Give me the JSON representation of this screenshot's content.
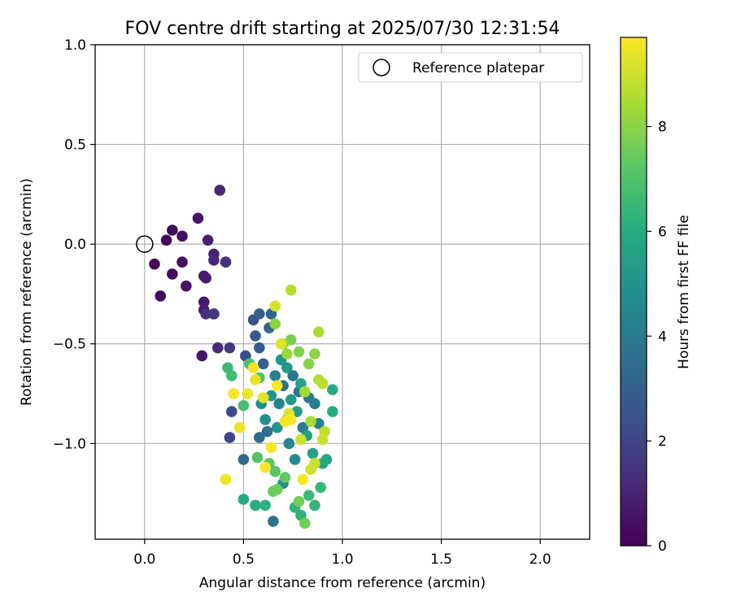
{
  "chart_data": {
    "type": "scatter",
    "title": "FOV centre drift starting at 2025/07/30 12:31:54",
    "xlabel": "Angular distance from reference (arcmin)",
    "ylabel": "Rotation from reference (arcmin)",
    "xlim": [
      -0.25,
      2.25
    ],
    "ylim": [
      -1.48,
      1.0
    ],
    "x_ticks": [
      0.0,
      0.5,
      1.0,
      1.5,
      2.0
    ],
    "x_tick_labels": [
      "0.0",
      "0.5",
      "1.0",
      "1.5",
      "2.0"
    ],
    "y_ticks": [
      1.0,
      0.5,
      0.0,
      -0.5,
      -1.0
    ],
    "y_tick_labels": [
      "1.0",
      "0.5",
      "0.0",
      "−0.5",
      "−1.0"
    ],
    "grid": true,
    "legend": {
      "placement": "top-right",
      "entries": [
        "Reference platepar"
      ]
    },
    "reference_point": {
      "x": 0.0,
      "y": 0.0,
      "label": "Reference platepar"
    },
    "colorbar": {
      "label": "Hours from first FF file",
      "colormap": "viridis",
      "range": [
        0,
        9.7
      ],
      "ticks": [
        0,
        2,
        4,
        6,
        8
      ],
      "tick_labels": [
        "0",
        "2",
        "4",
        "6",
        "8"
      ]
    },
    "points": [
      [
        0.05,
        -0.1,
        0.1
      ],
      [
        0.08,
        -0.26,
        0.2
      ],
      [
        0.11,
        0.02,
        0.2
      ],
      [
        0.14,
        0.07,
        0.3
      ],
      [
        0.14,
        -0.15,
        0.3
      ],
      [
        0.19,
        0.04,
        0.4
      ],
      [
        0.19,
        -0.09,
        0.4
      ],
      [
        0.21,
        -0.21,
        0.5
      ],
      [
        0.27,
        0.13,
        0.6
      ],
      [
        0.29,
        -0.56,
        0.6
      ],
      [
        0.3,
        -0.16,
        0.7
      ],
      [
        0.3,
        -0.29,
        0.7
      ],
      [
        0.3,
        -0.33,
        0.8
      ],
      [
        0.31,
        -0.17,
        0.8
      ],
      [
        0.32,
        0.02,
        0.9
      ],
      [
        0.35,
        -0.05,
        1.0
      ],
      [
        0.35,
        -0.08,
        1.1
      ],
      [
        0.38,
        0.27,
        1.1
      ],
      [
        0.37,
        -0.52,
        1.2
      ],
      [
        0.41,
        -0.09,
        1.3
      ],
      [
        0.31,
        -0.35,
        1.4
      ],
      [
        0.35,
        -0.35,
        1.6
      ],
      [
        0.43,
        -0.52,
        1.7
      ],
      [
        0.43,
        -0.97,
        2.0
      ],
      [
        0.44,
        -0.84,
        2.2
      ],
      [
        0.51,
        -0.56,
        2.3
      ],
      [
        0.55,
        -0.38,
        2.5
      ],
      [
        0.56,
        -0.46,
        2.7
      ],
      [
        0.58,
        -0.52,
        2.8
      ],
      [
        0.58,
        -0.35,
        2.9
      ],
      [
        0.6,
        -0.6,
        3.0
      ],
      [
        0.63,
        -0.42,
        3.1
      ],
      [
        0.64,
        -0.35,
        3.2
      ],
      [
        0.5,
        -1.08,
        3.3
      ],
      [
        0.58,
        -0.97,
        3.4
      ],
      [
        0.62,
        -0.94,
        3.5
      ],
      [
        0.65,
        -1.39,
        3.6
      ],
      [
        0.7,
        -0.71,
        3.6
      ],
      [
        0.72,
        -0.88,
        3.7
      ],
      [
        0.75,
        -0.66,
        3.8
      ],
      [
        0.78,
        -0.74,
        3.9
      ],
      [
        0.8,
        -0.92,
        3.9
      ],
      [
        0.83,
        -0.77,
        4.0
      ],
      [
        0.86,
        -0.8,
        4.1
      ],
      [
        0.88,
        -0.9,
        4.2
      ],
      [
        0.66,
        -0.66,
        4.3
      ],
      [
        0.68,
        -0.8,
        4.4
      ],
      [
        0.73,
        -1.0,
        4.5
      ],
      [
        0.76,
        -1.08,
        4.6
      ],
      [
        0.7,
        -1.2,
        4.7
      ],
      [
        0.59,
        -0.8,
        4.8
      ],
      [
        0.61,
        -0.88,
        4.9
      ],
      [
        0.64,
        -0.76,
        5.0
      ],
      [
        0.67,
        -0.92,
        5.0
      ],
      [
        0.69,
        -0.58,
        5.1
      ],
      [
        0.72,
        -0.62,
        5.2
      ],
      [
        0.74,
        -0.78,
        5.3
      ],
      [
        0.77,
        -0.84,
        5.4
      ],
      [
        0.79,
        -0.7,
        5.5
      ],
      [
        0.82,
        -0.96,
        5.5
      ],
      [
        0.85,
        -1.05,
        5.6
      ],
      [
        0.9,
        -1.1,
        5.7
      ],
      [
        0.92,
        -1.08,
        5.8
      ],
      [
        0.95,
        -0.73,
        5.9
      ],
      [
        0.95,
        -0.84,
        6.0
      ],
      [
        0.5,
        -1.28,
        6.0
      ],
      [
        0.56,
        -1.31,
        6.1
      ],
      [
        0.61,
        -1.31,
        6.2
      ],
      [
        0.76,
        -1.32,
        6.3
      ],
      [
        0.79,
        -1.36,
        6.3
      ],
      [
        0.86,
        -1.31,
        6.4
      ],
      [
        0.89,
        -1.22,
        6.5
      ],
      [
        0.83,
        -1.26,
        6.6
      ],
      [
        0.42,
        -0.62,
        6.6
      ],
      [
        0.44,
        -0.66,
        6.7
      ],
      [
        0.5,
        -0.81,
        6.8
      ],
      [
        0.53,
        -0.6,
        6.9
      ],
      [
        0.58,
        -0.67,
        7.0
      ],
      [
        0.57,
        -1.07,
        7.1
      ],
      [
        0.63,
        -1.1,
        7.2
      ],
      [
        0.66,
        -1.14,
        7.2
      ],
      [
        0.71,
        -1.17,
        7.3
      ],
      [
        0.65,
        -1.24,
        7.4
      ],
      [
        0.67,
        -1.23,
        7.5
      ],
      [
        0.78,
        -1.29,
        7.6
      ],
      [
        0.81,
        -1.4,
        7.6
      ],
      [
        0.74,
        -0.48,
        7.7
      ],
      [
        0.78,
        -0.54,
        7.8
      ],
      [
        0.83,
        -0.6,
        7.9
      ],
      [
        0.86,
        -0.55,
        8.0
      ],
      [
        0.66,
        -0.4,
        8.0
      ],
      [
        0.7,
        -0.5,
        8.1
      ],
      [
        0.72,
        -0.55,
        8.2
      ],
      [
        0.81,
        -0.74,
        8.3
      ],
      [
        0.84,
        -0.89,
        8.4
      ],
      [
        0.88,
        -0.44,
        8.5
      ],
      [
        0.74,
        -0.23,
        8.6
      ],
      [
        0.88,
        -0.68,
        8.6
      ],
      [
        0.9,
        -0.7,
        8.7
      ],
      [
        0.91,
        -0.94,
        8.8
      ],
      [
        0.9,
        -0.98,
        8.9
      ],
      [
        0.86,
        -1.1,
        8.9
      ],
      [
        0.84,
        -1.13,
        9.0
      ],
      [
        0.79,
        -0.98,
        9.0
      ],
      [
        0.66,
        -0.31,
        9.1
      ],
      [
        0.73,
        -0.85,
        9.2
      ],
      [
        0.69,
        -0.5,
        9.3
      ],
      [
        0.6,
        -0.77,
        9.3
      ],
      [
        0.56,
        -0.68,
        9.4
      ],
      [
        0.52,
        -0.75,
        9.4
      ],
      [
        0.48,
        -0.92,
        9.5
      ],
      [
        0.41,
        -1.18,
        9.5
      ],
      [
        0.45,
        -0.75,
        9.6
      ],
      [
        0.61,
        -1.12,
        9.6
      ],
      [
        0.64,
        -1.02,
        9.6
      ],
      [
        0.8,
        -1.18,
        9.7
      ],
      [
        0.74,
        -0.88,
        9.7
      ],
      [
        0.71,
        -0.89,
        9.6
      ],
      [
        0.67,
        -0.71,
        9.7
      ],
      [
        0.55,
        -0.62,
        9.5
      ]
    ]
  }
}
